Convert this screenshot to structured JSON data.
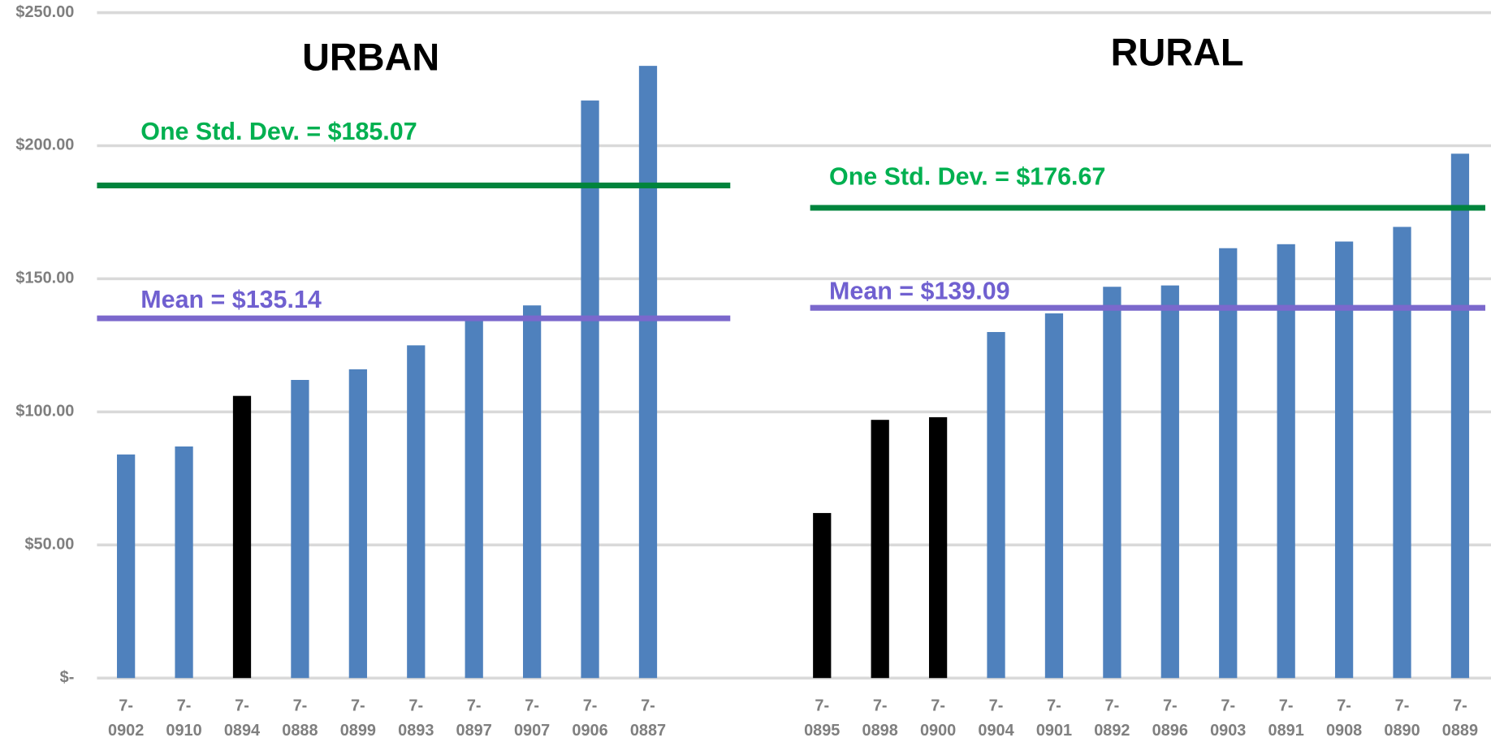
{
  "chart_data": {
    "type": "bar",
    "ylim": [
      0,
      250
    ],
    "yticks": [
      {
        "value": 0,
        "label": "$-"
      },
      {
        "value": 50,
        "label": "$50.00"
      },
      {
        "value": 100,
        "label": "$100.00"
      },
      {
        "value": 150,
        "label": "$150.00"
      },
      {
        "value": 200,
        "label": "$200.00"
      },
      {
        "value": 250,
        "label": "$250.00"
      }
    ],
    "grid": true,
    "panels": [
      {
        "title": "URBAN",
        "categories": [
          [
            "7-",
            "0902"
          ],
          [
            "7-",
            "0910"
          ],
          [
            "7-",
            "0894"
          ],
          [
            "7-",
            "0888"
          ],
          [
            "7-",
            "0899"
          ],
          [
            "7-",
            "0893"
          ],
          [
            "7-",
            "0897"
          ],
          [
            "7-",
            "0907"
          ],
          [
            "7-",
            "0906"
          ],
          [
            "7-",
            "0887"
          ]
        ],
        "values": [
          84,
          87,
          106,
          112,
          116,
          125,
          135,
          140,
          217,
          230
        ],
        "colors": [
          "#4f81bd",
          "#4f81bd",
          "#000000",
          "#4f81bd",
          "#4f81bd",
          "#4f81bd",
          "#4f81bd",
          "#4f81bd",
          "#4f81bd",
          "#4f81bd"
        ],
        "lines": [
          {
            "label": "One Std. Dev. = $185.07",
            "value": 185.07,
            "color": "#00843d",
            "text_color": "#00b050"
          },
          {
            "label": "Mean = $135.14",
            "value": 135.14,
            "color": "#7b68cc",
            "text_color": "#7060d0"
          }
        ]
      },
      {
        "title": "RURAL",
        "categories": [
          [
            "7-",
            "0895"
          ],
          [
            "7-",
            "0898"
          ],
          [
            "7-",
            "0900"
          ],
          [
            "7-",
            "0904"
          ],
          [
            "7-",
            "0901"
          ],
          [
            "7-",
            "0892"
          ],
          [
            "7-",
            "0896"
          ],
          [
            "7-",
            "0903"
          ],
          [
            "7-",
            "0891"
          ],
          [
            "7-",
            "0908"
          ],
          [
            "7-",
            "0890"
          ],
          [
            "7-",
            "0889"
          ]
        ],
        "values": [
          62,
          97,
          98,
          130,
          137,
          147,
          147.5,
          161.5,
          163,
          164,
          169.5,
          197
        ],
        "colors": [
          "#000000",
          "#000000",
          "#000000",
          "#4f81bd",
          "#4f81bd",
          "#4f81bd",
          "#4f81bd",
          "#4f81bd",
          "#4f81bd",
          "#4f81bd",
          "#4f81bd",
          "#4f81bd"
        ],
        "lines": [
          {
            "label": "One Std. Dev. = $176.67",
            "value": 176.67,
            "color": "#00843d",
            "text_color": "#00b050"
          },
          {
            "label": "Mean = $139.09",
            "value": 139.09,
            "color": "#7b68cc",
            "text_color": "#7060d0"
          }
        ]
      }
    ]
  }
}
